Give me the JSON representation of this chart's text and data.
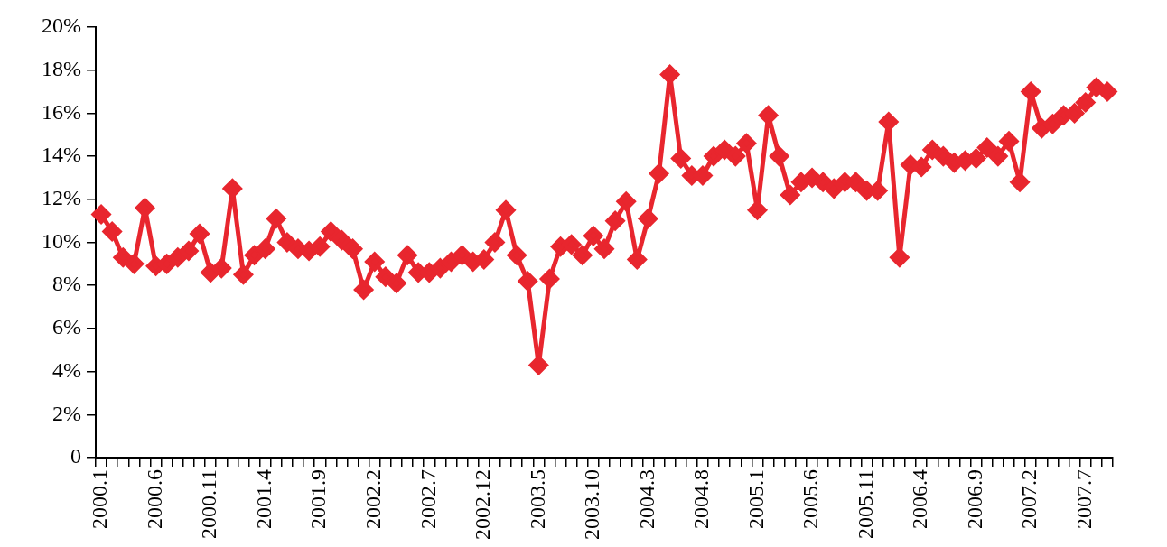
{
  "chart_data": {
    "type": "line",
    "categories": [
      "2000.1",
      null,
      null,
      null,
      null,
      "2000.6",
      null,
      null,
      null,
      null,
      "2000.11",
      null,
      null,
      null,
      null,
      "2001.4",
      null,
      null,
      null,
      null,
      "2001.9",
      null,
      null,
      null,
      null,
      "2002.2",
      null,
      null,
      null,
      null,
      "2002.7",
      null,
      null,
      null,
      null,
      "2002.12",
      null,
      null,
      null,
      null,
      "2003.5",
      null,
      null,
      null,
      null,
      "2003.10",
      null,
      null,
      null,
      null,
      "2004.3",
      null,
      null,
      null,
      null,
      "2004.8",
      null,
      null,
      null,
      null,
      "2005.1",
      null,
      null,
      null,
      null,
      "2005.6",
      null,
      null,
      null,
      null,
      "2005.11",
      null,
      null,
      null,
      null,
      "2006.4",
      null,
      null,
      null,
      null,
      "2006.9",
      null,
      null,
      null,
      null,
      "2007.2",
      null,
      null,
      null,
      null,
      "2007.7",
      null,
      null
    ],
    "series": [
      {
        "color": "#e8262e",
        "values": [
          11.3,
          10.5,
          9.3,
          9.0,
          11.6,
          8.9,
          9.0,
          9.3,
          9.6,
          10.4,
          8.6,
          8.8,
          12.5,
          8.5,
          9.4,
          9.7,
          11.1,
          10.0,
          9.7,
          9.6,
          9.8,
          10.5,
          10.1,
          9.7,
          7.8,
          9.1,
          8.4,
          8.1,
          9.4,
          8.6,
          8.6,
          8.8,
          9.1,
          9.4,
          9.1,
          9.2,
          10.0,
          11.5,
          9.4,
          8.2,
          4.3,
          8.3,
          9.8,
          9.9,
          9.4,
          10.3,
          9.7,
          11.0,
          11.9,
          9.2,
          11.1,
          13.2,
          17.8,
          13.9,
          13.1,
          13.1,
          14.0,
          14.3,
          14.0,
          14.6,
          11.5,
          15.9,
          14.0,
          12.2,
          12.8,
          13.0,
          12.8,
          12.5,
          12.8,
          12.8,
          12.4,
          12.4,
          15.6,
          9.3,
          13.6,
          13.5,
          14.3,
          14.0,
          13.7,
          13.8,
          13.9,
          14.4,
          14.0,
          14.7,
          12.8,
          17.0,
          15.3,
          15.5,
          15.9,
          16.0,
          16.5,
          17.2,
          17.0
        ]
      }
    ],
    "ylim": [
      0,
      20
    ],
    "yticks": [
      {
        "value": 0,
        "label": "0"
      },
      {
        "value": 2,
        "label": "2%"
      },
      {
        "value": 4,
        "label": "4%"
      },
      {
        "value": 6,
        "label": "6%"
      },
      {
        "value": 8,
        "label": "8%"
      },
      {
        "value": 10,
        "label": "10%"
      },
      {
        "value": 12,
        "label": "12%"
      },
      {
        "value": 14,
        "label": "14%"
      },
      {
        "value": 16,
        "label": "16%"
      },
      {
        "value": 18,
        "label": "18%"
      },
      {
        "value": 20,
        "label": "20%"
      }
    ],
    "grid": false,
    "legend": false,
    "marker": "diamond",
    "line_style": "solid"
  }
}
